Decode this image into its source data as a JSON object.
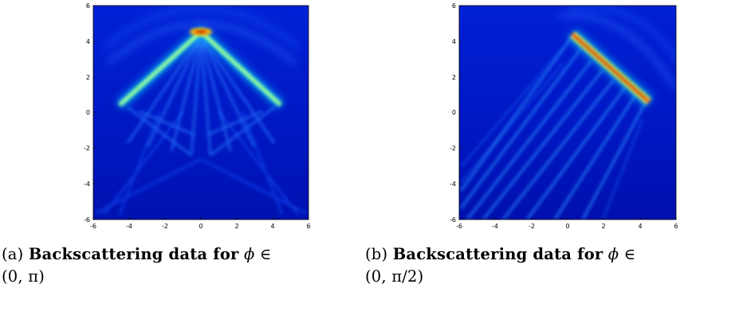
{
  "figure": {
    "colors": {
      "background_field": "#0018c8",
      "frame": "#000000",
      "colormap": [
        "#00007f",
        "#0000ff",
        "#00ffff",
        "#ffff00",
        "#ff0000",
        "#7f0000"
      ]
    },
    "panels": [
      {
        "id": "a",
        "caption_label": "(a)",
        "caption_bold": "Backscattering data for",
        "caption_math": "ϕ ∈",
        "caption_line2": "(0, π)",
        "x_ticks": [
          "-6",
          "-4",
          "-2",
          "0",
          "2",
          "4",
          "6"
        ],
        "y_ticks": [
          "6",
          "4",
          "2",
          "0",
          "-2",
          "-4",
          "-6"
        ],
        "xlim": [
          -6,
          6
        ],
        "ylim": [
          -6,
          6
        ],
        "colormap": "jet",
        "image_type": "heatmap"
      },
      {
        "id": "b",
        "caption_label": "(b)",
        "caption_bold": "Backscattering data for",
        "caption_math": "ϕ ∈",
        "caption_line2": "(0, π/2)",
        "x_ticks": [
          "-6",
          "-4",
          "-2",
          "0",
          "2",
          "4",
          "6"
        ],
        "y_ticks": [
          "6",
          "4",
          "2",
          "0",
          "-2",
          "-4",
          "-6"
        ],
        "xlim": [
          -6,
          6
        ],
        "ylim": [
          -6,
          6
        ],
        "colormap": "jet",
        "image_type": "heatmap"
      }
    ]
  }
}
